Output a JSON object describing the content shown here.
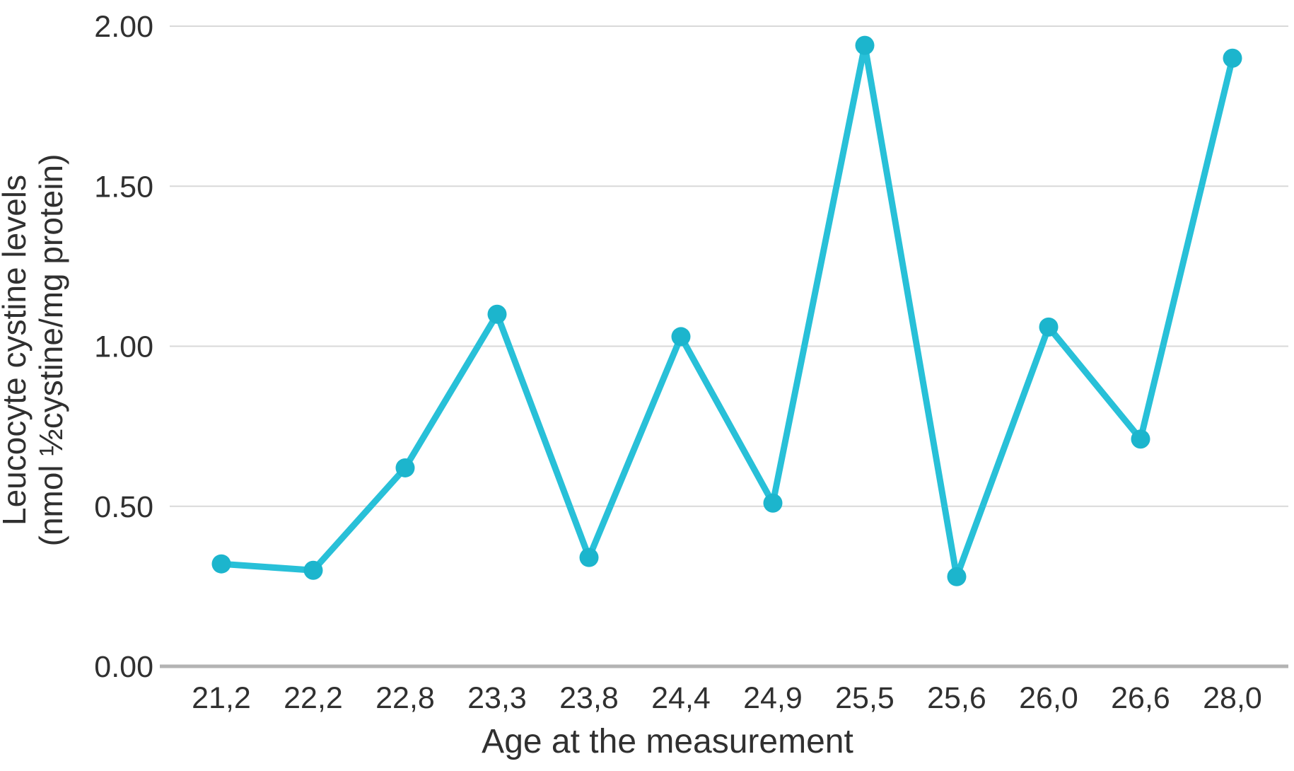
{
  "chart_data": {
    "type": "line",
    "title": "",
    "xlabel": "Age at the measurement",
    "ylabel": "Leucocyte cystine levels (nmol ½cystine/mg protein)",
    "ylabel_line1": "Leucocyte cystine levels",
    "ylabel_line2": "(nmol ½cystine/mg protein)",
    "categories": [
      "21,2",
      "22,2",
      "22,8",
      "23,3",
      "23,8",
      "24,4",
      "24,9",
      "25,5",
      "25,6",
      "26,0",
      "26,6",
      "28,0"
    ],
    "series": [
      {
        "name": "Leucocyte cystine levels",
        "values": [
          0.32,
          0.3,
          0.62,
          1.1,
          0.34,
          1.03,
          0.51,
          1.94,
          0.28,
          1.06,
          0.71,
          1.9
        ]
      }
    ],
    "ylim": [
      0.0,
      2.0
    ],
    "yticks": [
      0.0,
      0.5,
      1.0,
      1.5,
      2.0
    ],
    "ytick_labels": [
      "0.00",
      "0.50",
      "1.00",
      "1.50",
      "2.00"
    ],
    "grid": "horizontal-only",
    "legend": "none",
    "colors": {
      "line": "#28c0d8",
      "marker": "#1cb5cd",
      "gridline": "#d9d9d9",
      "axis_line": "#b3b3b3",
      "text": "#303030"
    }
  }
}
